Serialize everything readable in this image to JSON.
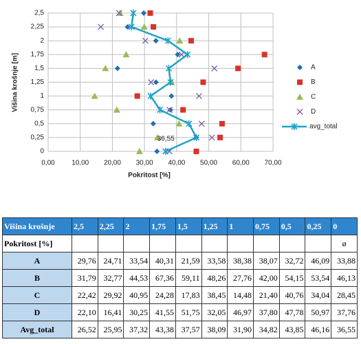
{
  "chart_data": {
    "type": "scatter",
    "xlabel": "Pokritost [%]",
    "ylabel": "Višina krošnje [m]",
    "y": [
      2.5,
      2.25,
      2,
      1.75,
      1.5,
      1.25,
      1,
      0.75,
      0.5,
      0.25,
      0
    ],
    "xlim": [
      0,
      70
    ],
    "ylim": [
      0,
      2.5
    ],
    "xticks": [
      {
        "value": 0,
        "label": "0,00"
      },
      {
        "value": 10,
        "label": "10,00"
      },
      {
        "value": 20,
        "label": "20,00"
      },
      {
        "value": 30,
        "label": "30,00"
      },
      {
        "value": 40,
        "label": "40,00"
      },
      {
        "value": 50,
        "label": "50,00"
      },
      {
        "value": 60,
        "label": "60,00"
      },
      {
        "value": 70,
        "label": "70,00"
      }
    ],
    "yticks": [
      0,
      {
        "value": 0.25,
        "label": "0,25"
      },
      {
        "value": 0.5,
        "label": "0,5"
      },
      {
        "value": 0.75,
        "label": "0,75"
      },
      1,
      {
        "value": 1.25,
        "label": "1,25"
      },
      {
        "value": 1.5,
        "label": "1,5"
      },
      {
        "value": 1.75,
        "label": "1,75"
      },
      2,
      {
        "value": 2.25,
        "label": "2,25"
      },
      {
        "value": 2.5,
        "label": "2,5"
      }
    ],
    "grid": true,
    "legend": "right",
    "series": [
      {
        "name": "A",
        "color": "#1f6fb2",
        "marker": "diamond",
        "x": [
          29.76,
          24.71,
          33.54,
          40.31,
          21.59,
          33.58,
          38.38,
          38.07,
          32.72,
          46.09,
          33.88
        ]
      },
      {
        "name": "B",
        "color": "#d9332b",
        "marker": "square",
        "x": [
          31.79,
          32.77,
          44.53,
          67.36,
          59.11,
          48.26,
          27.76,
          42.0,
          54.15,
          53.54,
          46.13
        ]
      },
      {
        "name": "C",
        "color": "#9bbb59",
        "marker": "triangle",
        "x": [
          22.42,
          29.92,
          40.95,
          24.28,
          17.83,
          38.45,
          14.48,
          21.4,
          40.76,
          34.04,
          28.45
        ]
      },
      {
        "name": "D",
        "color": "#7e5ca6",
        "marker": "cross",
        "x": [
          22.1,
          16.41,
          30.25,
          41.55,
          51.75,
          32.05,
          46.97,
          37.8,
          47.78,
          50.97,
          37.76
        ]
      },
      {
        "name": "avg_total",
        "color": "#1fa2c8",
        "marker": "star",
        "line": true,
        "x": [
          26.52,
          25.95,
          37.32,
          43.38,
          37.57,
          38.09,
          31.9,
          34.82,
          43.85,
          46.16,
          36.55
        ],
        "value_labels": [
          null,
          null,
          null,
          null,
          null,
          null,
          null,
          null,
          null,
          null,
          "36,55"
        ]
      }
    ]
  },
  "table": {
    "header": [
      "Višina krošnje",
      "2,5",
      "2,25",
      "2",
      "1,75",
      "1,5",
      "1,25",
      "1",
      "0,75",
      "0,5",
      "0,25",
      "0"
    ],
    "unit_row": {
      "label": "Pokritost [%]",
      "symbol": "ø"
    },
    "rows": [
      [
        "A",
        "29,76",
        "24,71",
        "33,54",
        "40,31",
        "21,59",
        "33,58",
        "38,38",
        "38,07",
        "32,72",
        "46,09",
        "33,88"
      ],
      [
        "B",
        "31,79",
        "32,77",
        "44,53",
        "67,36",
        "59,11",
        "48,26",
        "27,76",
        "42,00",
        "54,15",
        "53,54",
        "46,13"
      ],
      [
        "C",
        "22,42",
        "29,92",
        "40,95",
        "24,28",
        "17,83",
        "38,45",
        "14,48",
        "21,40",
        "40,76",
        "34,04",
        "28,45"
      ],
      [
        "D",
        "22,10",
        "16,41",
        "30,25",
        "41,55",
        "51,75",
        "32,05",
        "46,97",
        "37,80",
        "47,78",
        "50,97",
        "37,76"
      ],
      [
        "Avg_total",
        "26,52",
        "25,95",
        "37,32",
        "43,38",
        "37,57",
        "38,09",
        "31,90",
        "34,82",
        "43,85",
        "46,16",
        "36,55"
      ]
    ]
  }
}
